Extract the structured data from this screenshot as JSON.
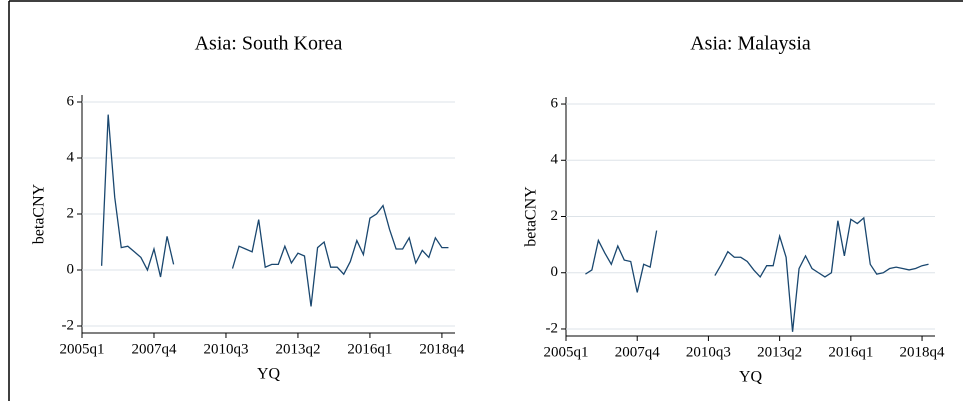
{
  "chart_data": [
    {
      "type": "line",
      "title": "Asia: South Korea",
      "xlabel": "YQ",
      "ylabel": "betaCNY",
      "color": "#1a476f",
      "grid": true,
      "x": [
        183,
        184,
        185,
        186,
        187,
        188,
        189,
        190,
        191,
        192,
        193,
        194,
        195,
        196,
        197,
        198,
        199,
        200,
        201,
        202,
        203,
        204,
        205,
        206,
        207,
        208,
        209,
        210,
        211,
        212,
        213,
        214,
        215,
        216,
        217,
        218,
        219,
        220,
        221,
        222,
        223,
        224,
        225,
        226,
        227,
        228,
        229,
        230,
        231,
        232,
        233,
        234,
        235,
        236
      ],
      "values": [
        0.15,
        5.55,
        2.6,
        0.8,
        0.85,
        0.65,
        0.45,
        0.0,
        0.75,
        -0.25,
        1.2,
        0.2,
        null,
        null,
        null,
        null,
        null,
        null,
        null,
        null,
        0.05,
        0.85,
        0.75,
        0.65,
        1.8,
        0.1,
        0.2,
        0.2,
        0.85,
        0.25,
        0.6,
        0.5,
        -1.3,
        0.8,
        1.0,
        0.1,
        0.1,
        -0.15,
        0.3,
        1.05,
        0.55,
        1.85,
        2.0,
        2.3,
        1.45,
        0.75,
        0.75,
        1.15,
        0.25,
        0.7,
        0.45,
        1.15,
        0.8,
        0.8
      ],
      "xlim": [
        180,
        237
      ],
      "ylim": [
        -2.25,
        6.25
      ],
      "xticks": [
        {
          "value": 180,
          "label": "2005q1"
        },
        {
          "value": 191,
          "label": "2007q4"
        },
        {
          "value": 202,
          "label": "2010q3"
        },
        {
          "value": 213,
          "label": "2013q2"
        },
        {
          "value": 224,
          "label": "2016q1"
        },
        {
          "value": 235,
          "label": "2018q4"
        }
      ],
      "yticks": [
        -2,
        0,
        2,
        4,
        6
      ]
    },
    {
      "type": "line",
      "title": "Asia: Malaysia",
      "xlabel": "YQ",
      "ylabel": "betaCNY",
      "color": "#1a476f",
      "grid": true,
      "x": [
        183,
        184,
        185,
        186,
        187,
        188,
        189,
        190,
        191,
        192,
        193,
        194,
        195,
        196,
        197,
        198,
        199,
        200,
        201,
        202,
        203,
        204,
        205,
        206,
        207,
        208,
        209,
        210,
        211,
        212,
        213,
        214,
        215,
        216,
        217,
        218,
        219,
        220,
        221,
        222,
        223,
        224,
        225,
        226,
        227,
        228,
        229,
        230,
        231,
        232,
        233,
        234,
        235,
        236
      ],
      "values": [
        -0.05,
        0.1,
        1.15,
        0.7,
        0.3,
        0.95,
        0.45,
        0.4,
        -0.7,
        0.3,
        0.2,
        1.5,
        null,
        null,
        null,
        null,
        null,
        null,
        null,
        null,
        -0.1,
        0.3,
        0.75,
        0.55,
        0.55,
        0.4,
        0.1,
        -0.15,
        0.25,
        0.25,
        1.3,
        0.55,
        -2.1,
        0.15,
        0.6,
        0.15,
        0.0,
        -0.15,
        0.0,
        1.85,
        0.6,
        1.9,
        1.75,
        1.95,
        0.3,
        -0.05,
        0.0,
        0.15,
        0.2,
        0.15,
        0.1,
        0.15,
        0.25,
        0.3
      ],
      "xlim": [
        180,
        237
      ],
      "ylim": [
        -2.25,
        6.25
      ],
      "xticks": [
        {
          "value": 180,
          "label": "2005q1"
        },
        {
          "value": 191,
          "label": "2007q4"
        },
        {
          "value": 202,
          "label": "2010q3"
        },
        {
          "value": 213,
          "label": "2013q2"
        },
        {
          "value": 224,
          "label": "2016q1"
        },
        {
          "value": 235,
          "label": "2018q4"
        }
      ],
      "yticks": [
        -2,
        0,
        2,
        4,
        6
      ]
    }
  ]
}
